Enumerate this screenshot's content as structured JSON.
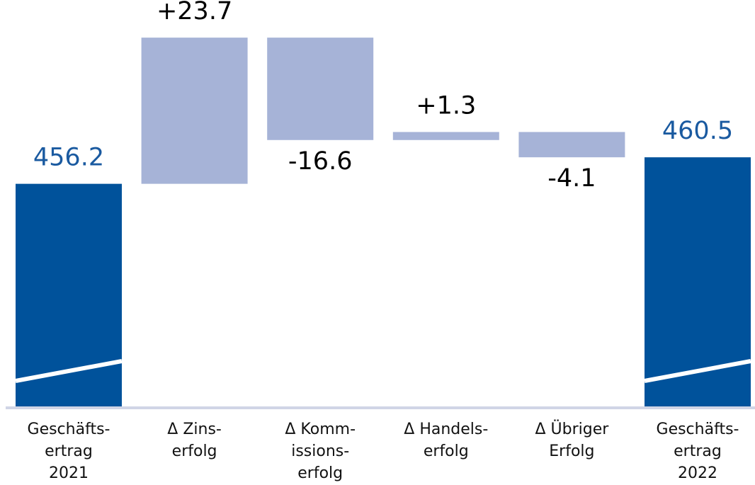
{
  "chart_data": {
    "type": "waterfall",
    "categories": [
      [
        "Geschäfts-",
        "ertrag",
        "2021"
      ],
      [
        "Δ Zins-",
        "erfolg"
      ],
      [
        "Δ Komm-",
        "issions-",
        "erfolg"
      ],
      [
        "Δ Handels-",
        "erfolg"
      ],
      [
        "Δ Übriger",
        "Erfolg"
      ],
      [
        "Geschäfts-",
        "ertrag",
        "2022"
      ]
    ],
    "measure": [
      "total",
      "relative",
      "relative",
      "relative",
      "relative",
      "total"
    ],
    "values": [
      456.2,
      23.7,
      -16.6,
      1.3,
      -4.1,
      460.5
    ],
    "value_labels": [
      "456.2",
      "+23.7",
      "-16.6",
      "+1.3",
      "-4.1",
      "460.5"
    ],
    "total_color": "#00529b",
    "delta_color": "#a6b3d7",
    "total_label_color": "#1a5aa0",
    "ylim": [
      420,
      486
    ]
  }
}
